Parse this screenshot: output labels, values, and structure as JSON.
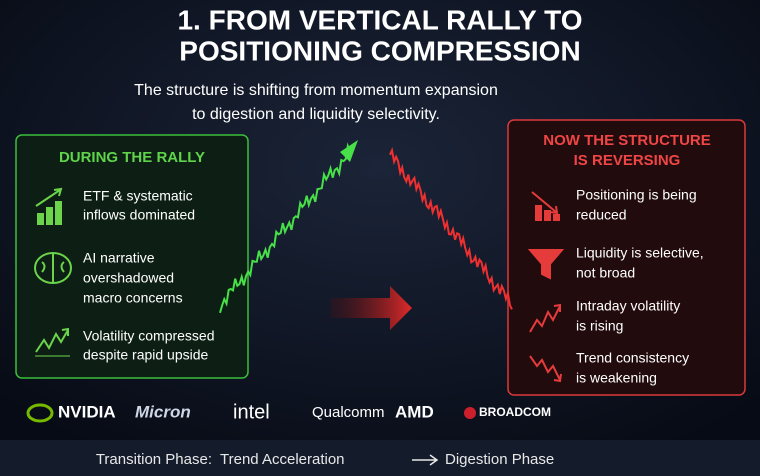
{
  "header": {
    "title_lines": [
      "1. FROM VERTICAL RALLY TO",
      "POSITIONING COMPRESSION"
    ],
    "subtitle_lines": [
      "The structure is shifting from momentum expansion",
      "to digestion and liquidity selectivity."
    ]
  },
  "left_panel": {
    "title": "DURING THE RALLY",
    "items": [
      {
        "lines": [
          "ETF & systematic",
          "inflows dominated"
        ]
      },
      {
        "lines": [
          "AI narrative",
          "overshadowed",
          "macro concerns"
        ]
      },
      {
        "lines": [
          "Volatility compressed",
          "despite rapid upside"
        ]
      }
    ]
  },
  "right_panel": {
    "title_lines": [
      "NOW THE STRUCTURE",
      "IS REVERSING"
    ],
    "items": [
      {
        "lines": [
          "Positioning is being",
          "reduced"
        ]
      },
      {
        "lines": [
          "Liquidity is selective,",
          "not broad"
        ]
      },
      {
        "lines": [
          "Intraday volatility",
          "is rising"
        ]
      },
      {
        "lines": [
          "Trend consistency",
          "is weakening"
        ]
      }
    ]
  },
  "logos": [
    "NVIDIA",
    "Micron",
    "intel",
    "Qualcomm",
    "AMD",
    "BROADCOM"
  ],
  "footer": {
    "label": "Transition Phase:",
    "from": "Trend Acceleration",
    "to": "Digestion Phase"
  }
}
